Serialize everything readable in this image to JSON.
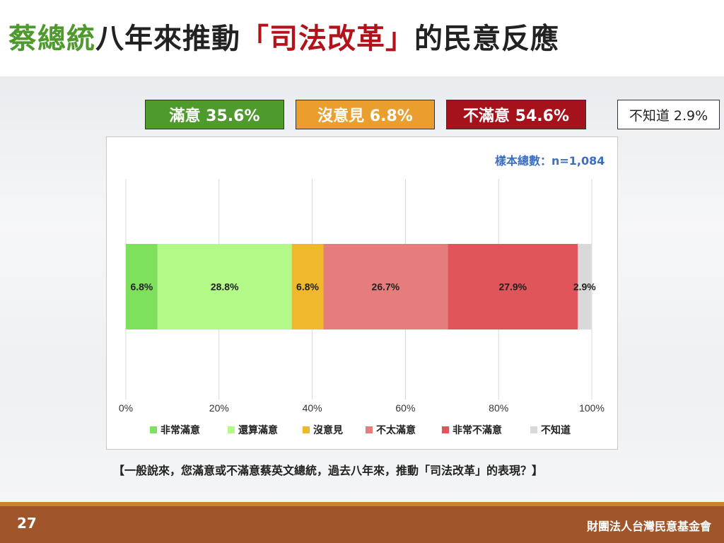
{
  "title": {
    "part1": "蔡總統",
    "part2": "八年來推動",
    "part3": "「司法改革」",
    "part4": "的民意反應"
  },
  "summary": {
    "satisfied": "滿意 35.6%",
    "neutral": "沒意見 6.8%",
    "dissatisfied": "不滿意 54.6%",
    "unknown": "不知道 2.9%"
  },
  "sample_size": "樣本總數：n=1,084",
  "question": "【一般說來，您滿意或不滿意蔡英文總統，過去八年來，推動「司法改革」的表現？】",
  "footer": {
    "page": "27",
    "org": "財團法人台灣民意基金會"
  },
  "colors": {
    "very_satisfied": "#7ee05c",
    "somewhat_satisfied": "#b2f987",
    "neutral": "#f0b82c",
    "somewhat_dissatisfied": "#e67d7d",
    "very_dissatisfied": "#e05559",
    "unknown": "#d9d9d9",
    "box_satisfied": "#4e9a2c",
    "box_neutral": "#ea9e2e",
    "box_dissatisfied": "#a5121b"
  },
  "chart_data": {
    "type": "bar",
    "orientation": "horizontal",
    "stacked": true,
    "xlim": [
      0,
      100
    ],
    "x_ticks": [
      "0%",
      "20%",
      "40%",
      "60%",
      "80%",
      "100%"
    ],
    "grid": true,
    "legend_position": "bottom",
    "series": [
      {
        "name": "非常滿意",
        "value": 6.8,
        "label": "6.8%"
      },
      {
        "name": "還算滿意",
        "value": 28.8,
        "label": "28.8%"
      },
      {
        "name": "沒意見",
        "value": 6.8,
        "label": "6.8%"
      },
      {
        "name": "不太滿意",
        "value": 26.7,
        "label": "26.7%"
      },
      {
        "name": "非常不滿意",
        "value": 27.9,
        "label": "27.9%"
      },
      {
        "name": "不知道",
        "value": 2.9,
        "label": "2.9%"
      }
    ]
  }
}
